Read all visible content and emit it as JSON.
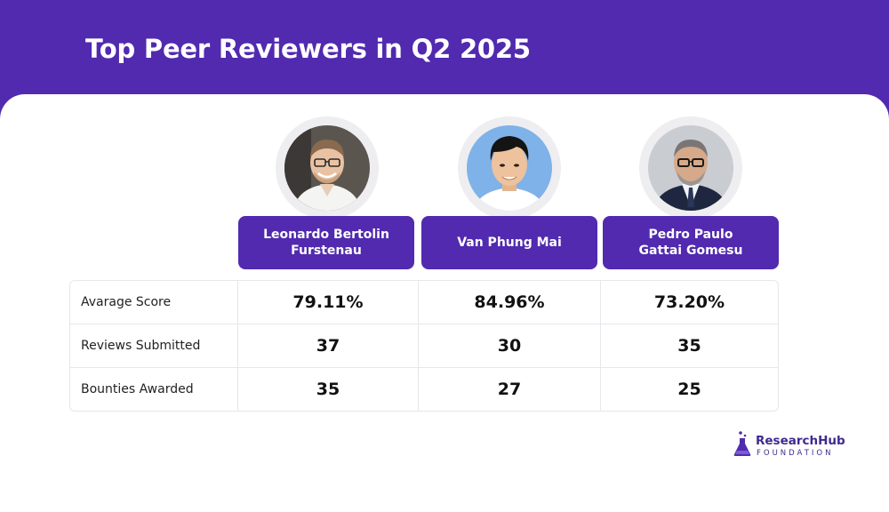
{
  "title": "Top Peer Reviewers in Q2 2025",
  "colors": {
    "brand_purple": "#512AAF",
    "avatar_ring": "#EEEEF1",
    "border": "#E6E6EC"
  },
  "reviewers": [
    {
      "name_line1": "Leonardo Bertolin",
      "name_line2": "Furstenau"
    },
    {
      "name_line1": "Van Phung Mai",
      "name_line2": ""
    },
    {
      "name_line1": "Pedro Paulo",
      "name_line2": "Gattai Gomesu"
    }
  ],
  "table": {
    "rows": [
      {
        "label": "Avarage Score",
        "values": [
          "79.11%",
          "84.96%",
          "73.20%"
        ]
      },
      {
        "label": "Reviews Submitted",
        "values": [
          "37",
          "30",
          "35"
        ]
      },
      {
        "label": "Bounties Awarded",
        "values": [
          "35",
          "27",
          "25"
        ]
      }
    ]
  },
  "logo": {
    "main": "ResearchHub",
    "sub": "FOUNDATION",
    "icon": "flask-icon"
  }
}
